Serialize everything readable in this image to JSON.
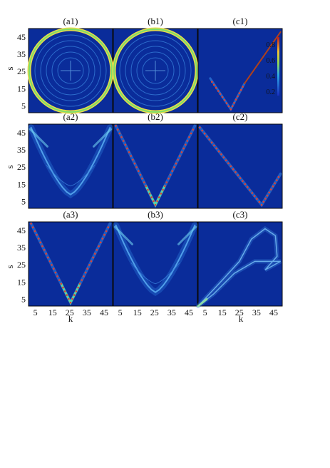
{
  "chart_data": {
    "type": "heatmap",
    "ylabel": "s",
    "xlabel": "k",
    "axis_range": [
      1,
      50
    ],
    "x_ticks": [
      "5",
      "15",
      "25",
      "35",
      "45"
    ],
    "y_ticks": [
      "45",
      "35",
      "25",
      "15",
      "5"
    ],
    "colorbar": {
      "ticks": [
        "0.8",
        "0.6",
        "0.4",
        "0.2"
      ],
      "colormap": "jet"
    },
    "panels": [
      {
        "id": "a1",
        "title": "(a1)",
        "pattern": "circle"
      },
      {
        "id": "b1",
        "title": "(b1)",
        "pattern": "circle"
      },
      {
        "id": "c1",
        "title": "(c1)",
        "pattern": "V-to-top-right"
      },
      {
        "id": "a2",
        "title": "(a2)",
        "pattern": "U-shape"
      },
      {
        "id": "b2",
        "title": "(b2)",
        "pattern": "V-shape"
      },
      {
        "id": "c2",
        "title": "(c2)",
        "pattern": "V-with-top-left-arm"
      },
      {
        "id": "a3",
        "title": "(a3)",
        "pattern": "V-shape"
      },
      {
        "id": "b3",
        "title": "(b3)",
        "pattern": "U-shape"
      },
      {
        "id": "c3",
        "title": "(c3)",
        "pattern": "loop"
      }
    ]
  },
  "colors": {
    "background": "#0a2c9a",
    "max": "#c4161c"
  }
}
